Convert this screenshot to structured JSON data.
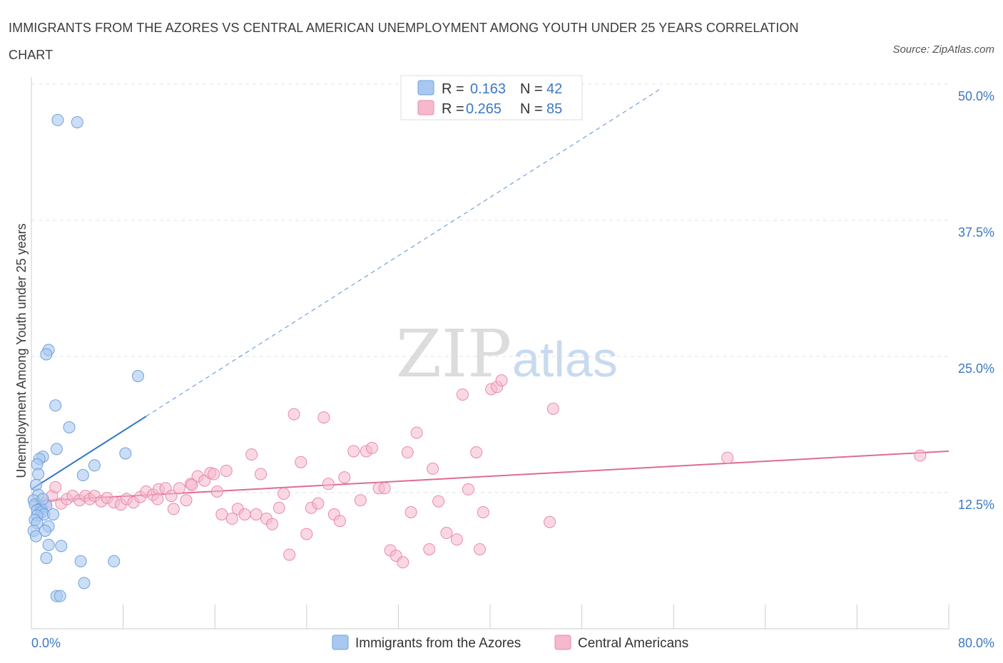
{
  "title": "IMMIGRANTS FROM THE AZORES VS CENTRAL AMERICAN UNEMPLOYMENT AMONG YOUTH UNDER 25 YEARS CORRELATION CHART",
  "source": "Source: ZipAtlas.com",
  "watermark": {
    "zip": "ZIP",
    "atlas": "atlas"
  },
  "legend": {
    "azores": {
      "r_label": "R =",
      "r_value": "0.163",
      "n_label": "N =",
      "n_value": "42"
    },
    "central": {
      "r_label": "R =",
      "r_value": "0.265",
      "n_label": "N =",
      "n_value": "85"
    }
  },
  "bottom_legend": {
    "azores": "Immigrants from the Azores",
    "central": "Central Americans"
  },
  "colors": {
    "azores_fill": "#a8c8f0",
    "azores_stroke": "#6fa0dc",
    "azores_line": "#2f74c8",
    "central_fill": "#f6b8cc",
    "central_stroke": "#e88aa8",
    "central_line": "#e06a95",
    "grid": "#e0e0e0",
    "axis_text": "#3b78c4"
  },
  "chart_data": {
    "type": "scatter",
    "title": "IMMIGRANTS FROM THE AZORES VS CENTRAL AMERICAN UNEMPLOYMENT AMONG YOUTH UNDER 25 YEARS CORRELATION CHART",
    "xlabel": "",
    "ylabel": "Unemployment Among Youth under 25 years",
    "xlim": [
      0,
      80
    ],
    "ylim": [
      0,
      50
    ],
    "x_tick_labels": [
      "0.0%",
      "80.0%"
    ],
    "y_ticks": [
      12.5,
      25.0,
      37.5,
      50.0
    ],
    "y_tick_labels": [
      "12.5%",
      "25.0%",
      "37.5%",
      "50.0%"
    ],
    "series": [
      {
        "name": "Immigrants from the Azores",
        "r": 0.163,
        "n": 42,
        "trend": {
          "x0": 0,
          "y0": 12.8,
          "x1": 10,
          "y1": 19.5,
          "dashed_to_x": 55
        },
        "points": [
          [
            2.3,
            46.7
          ],
          [
            4.0,
            46.5
          ],
          [
            1.5,
            25.6
          ],
          [
            1.3,
            25.2
          ],
          [
            9.3,
            23.2
          ],
          [
            2.1,
            20.5
          ],
          [
            3.3,
            18.5
          ],
          [
            2.2,
            16.5
          ],
          [
            8.2,
            16.1
          ],
          [
            1.0,
            15.8
          ],
          [
            0.7,
            15.6
          ],
          [
            0.5,
            15.1
          ],
          [
            5.5,
            15.0
          ],
          [
            0.6,
            14.2
          ],
          [
            4.5,
            14.1
          ],
          [
            0.4,
            13.2
          ],
          [
            0.6,
            12.3
          ],
          [
            0.2,
            11.8
          ],
          [
            0.3,
            11.4
          ],
          [
            0.8,
            11.1
          ],
          [
            0.9,
            11.0
          ],
          [
            1.3,
            11.3
          ],
          [
            0.5,
            10.9
          ],
          [
            0.9,
            10.7
          ],
          [
            1.1,
            10.5
          ],
          [
            0.5,
            10.4
          ],
          [
            1.9,
            10.5
          ],
          [
            0.3,
            10.0
          ],
          [
            0.5,
            9.7
          ],
          [
            1.5,
            9.4
          ],
          [
            0.2,
            9.0
          ],
          [
            1.2,
            9.0
          ],
          [
            0.4,
            8.5
          ],
          [
            1.5,
            7.7
          ],
          [
            2.6,
            7.6
          ],
          [
            1.3,
            6.5
          ],
          [
            4.3,
            6.2
          ],
          [
            7.2,
            6.2
          ],
          [
            4.6,
            4.2
          ],
          [
            2.2,
            3.0
          ],
          [
            2.5,
            3.0
          ],
          [
            1.0,
            11.9
          ]
        ]
      },
      {
        "name": "Central Americans",
        "r": 0.265,
        "n": 85,
        "trend": {
          "x0": 0,
          "y0": 11.7,
          "x1": 80,
          "y1": 16.3
        },
        "points": [
          [
            1.2,
            11.5
          ],
          [
            1.8,
            12.2
          ],
          [
            2.1,
            13.0
          ],
          [
            2.6,
            11.5
          ],
          [
            3.1,
            11.9
          ],
          [
            3.6,
            12.2
          ],
          [
            4.2,
            11.8
          ],
          [
            4.7,
            12.2
          ],
          [
            5.1,
            11.9
          ],
          [
            5.5,
            12.2
          ],
          [
            6.1,
            11.7
          ],
          [
            6.6,
            12.0
          ],
          [
            7.2,
            11.6
          ],
          [
            7.8,
            11.4
          ],
          [
            8.3,
            11.9
          ],
          [
            8.9,
            11.6
          ],
          [
            9.5,
            12.1
          ],
          [
            10.0,
            12.6
          ],
          [
            10.6,
            12.3
          ],
          [
            11.1,
            12.8
          ],
          [
            11.7,
            12.9
          ],
          [
            12.2,
            12.2
          ],
          [
            12.4,
            11.0
          ],
          [
            12.9,
            12.9
          ],
          [
            13.5,
            11.8
          ],
          [
            13.9,
            13.3
          ],
          [
            14.5,
            14.0
          ],
          [
            15.1,
            13.6
          ],
          [
            15.6,
            14.3
          ],
          [
            15.9,
            14.2
          ],
          [
            16.2,
            12.6
          ],
          [
            16.6,
            10.5
          ],
          [
            17.0,
            14.5
          ],
          [
            17.5,
            10.1
          ],
          [
            18.0,
            11.0
          ],
          [
            18.6,
            10.5
          ],
          [
            19.2,
            16.0
          ],
          [
            19.6,
            10.5
          ],
          [
            20.0,
            14.2
          ],
          [
            20.5,
            10.1
          ],
          [
            21.0,
            9.6
          ],
          [
            21.6,
            11.1
          ],
          [
            22.0,
            12.4
          ],
          [
            22.5,
            6.8
          ],
          [
            22.9,
            19.7
          ],
          [
            23.5,
            15.3
          ],
          [
            24.0,
            8.7
          ],
          [
            24.4,
            11.1
          ],
          [
            25.0,
            11.5
          ],
          [
            25.5,
            19.4
          ],
          [
            25.9,
            13.3
          ],
          [
            26.4,
            10.5
          ],
          [
            26.9,
            9.9
          ],
          [
            27.3,
            13.9
          ],
          [
            28.1,
            16.3
          ],
          [
            28.7,
            11.8
          ],
          [
            29.2,
            16.3
          ],
          [
            29.7,
            16.6
          ],
          [
            30.3,
            12.9
          ],
          [
            30.8,
            12.9
          ],
          [
            31.3,
            7.2
          ],
          [
            31.8,
            6.7
          ],
          [
            32.4,
            6.1
          ],
          [
            32.8,
            16.2
          ],
          [
            33.1,
            10.7
          ],
          [
            33.6,
            18.0
          ],
          [
            34.7,
            7.3
          ],
          [
            35.0,
            14.7
          ],
          [
            35.5,
            11.7
          ],
          [
            36.2,
            8.8
          ],
          [
            37.1,
            8.2
          ],
          [
            37.6,
            21.5
          ],
          [
            38.1,
            12.8
          ],
          [
            38.8,
            16.2
          ],
          [
            39.1,
            7.3
          ],
          [
            39.4,
            10.7
          ],
          [
            40.1,
            22.0
          ],
          [
            40.6,
            22.2
          ],
          [
            41.0,
            22.8
          ],
          [
            45.5,
            20.2
          ],
          [
            45.2,
            9.8
          ],
          [
            60.7,
            15.7
          ],
          [
            77.5,
            15.9
          ],
          [
            14.0,
            13.2
          ],
          [
            11.0,
            11.9
          ]
        ]
      }
    ]
  }
}
